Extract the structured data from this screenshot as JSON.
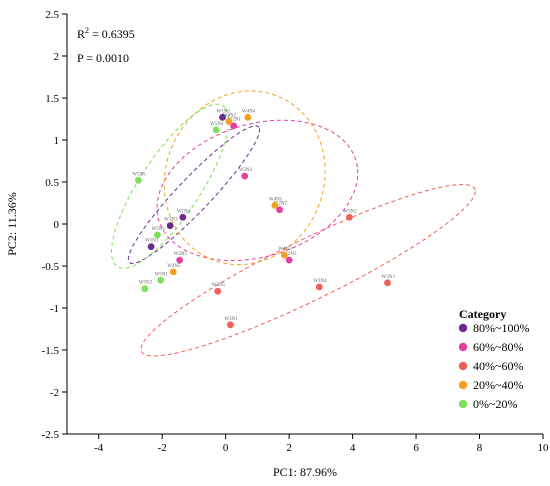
{
  "chart_data": {
    "type": "scatter",
    "xlabel": "PC1: 87.96%",
    "ylabel": "PC2: 11.36%",
    "xlim": [
      -5,
      10
    ],
    "ylim": [
      -2.5,
      2.5
    ],
    "xticks": [
      "-4",
      "-2",
      "0",
      "2",
      "4",
      "6",
      "8",
      "10"
    ],
    "yticks": [
      "2.5",
      "2",
      "1.5",
      "1",
      "0.5",
      "0",
      "-0.5",
      "-1",
      "-1.5",
      "-2",
      "-2.5"
    ],
    "annotations": {
      "r2_prefix": "R",
      "r2_sup": "2",
      "r2_value": " = 0.6395",
      "p": "P = 0.0010"
    },
    "legend": {
      "title": "Category",
      "position": "bottom-right"
    },
    "series": [
      {
        "name": "80%~100%",
        "color": "#6a2c91",
        "points": [
          {
            "x": -0.1,
            "y": 1.27,
            "label": "W1N2"
          },
          {
            "x": -1.35,
            "y": 0.08,
            "label": "W1N4"
          },
          {
            "x": -1.75,
            "y": -0.02,
            "label": "W1N3"
          },
          {
            "x": -2.35,
            "y": -0.27,
            "label": "W1N1"
          }
        ]
      },
      {
        "name": "60%~80%",
        "color": "#e040a0",
        "points": [
          {
            "x": 0.25,
            "y": 1.17,
            "label": "W2N1"
          },
          {
            "x": 0.6,
            "y": 0.57,
            "label": "W2N4"
          },
          {
            "x": 1.7,
            "y": 0.17,
            "label": "W2N2"
          },
          {
            "x": 2.0,
            "y": -0.43,
            "label": "W2N3"
          },
          {
            "x": -1.45,
            "y": -0.43,
            "label": "W2N5"
          }
        ]
      },
      {
        "name": "40%~60%",
        "color": "#f0605a",
        "points": [
          {
            "x": 3.9,
            "y": 0.08,
            "label": "W3N2"
          },
          {
            "x": 5.1,
            "y": -0.7,
            "label": "W3N3"
          },
          {
            "x": 2.95,
            "y": -0.75,
            "label": "W3N4"
          },
          {
            "x": -0.25,
            "y": -0.8,
            "label": "W3N5"
          },
          {
            "x": 0.15,
            "y": -1.2,
            "label": "W3N1"
          }
        ]
      },
      {
        "name": "20%~40%",
        "color": "#f5a020",
        "points": [
          {
            "x": 0.7,
            "y": 1.27,
            "label": "W4N4"
          },
          {
            "x": 0.1,
            "y": 1.22,
            "label": "W4N2"
          },
          {
            "x": 1.55,
            "y": 0.22,
            "label": "W4N1"
          },
          {
            "x": 1.85,
            "y": -0.37,
            "label": "W4N3"
          },
          {
            "x": -1.65,
            "y": -0.57,
            "label": "W4N5"
          }
        ]
      },
      {
        "name": "0%~20%",
        "color": "#7ee05a",
        "points": [
          {
            "x": -2.75,
            "y": 0.52,
            "label": "W5N5"
          },
          {
            "x": -2.15,
            "y": -0.13,
            "label": "W5N3"
          },
          {
            "x": -0.3,
            "y": 1.12,
            "label": "W5N4"
          },
          {
            "x": -2.05,
            "y": -0.67,
            "label": "W5N1"
          },
          {
            "x": -2.55,
            "y": -0.77,
            "label": "W5N2"
          }
        ]
      }
    ],
    "ellipses": [
      {
        "series": "80%~100%",
        "cx": -1.0,
        "cy": 0.35,
        "rx": 2.6,
        "ry": 0.45,
        "angle_deg": 38
      },
      {
        "series": "60%~80%",
        "cx": 1.0,
        "cy": 0.4,
        "rx": 3.2,
        "ry": 1.6,
        "angle_deg": 10
      },
      {
        "series": "40%~60%",
        "cx": 2.6,
        "cy": -0.55,
        "rx": 5.6,
        "ry": 0.75,
        "angle_deg": 20
      },
      {
        "series": "20%~40%",
        "cx": 0.6,
        "cy": 0.55,
        "rx": 2.55,
        "ry": 2.05,
        "angle_deg": 10
      },
      {
        "series": "0%~20%",
        "cx": -1.75,
        "cy": 0.45,
        "rx": 2.55,
        "ry": 0.85,
        "angle_deg": 47
      }
    ]
  }
}
